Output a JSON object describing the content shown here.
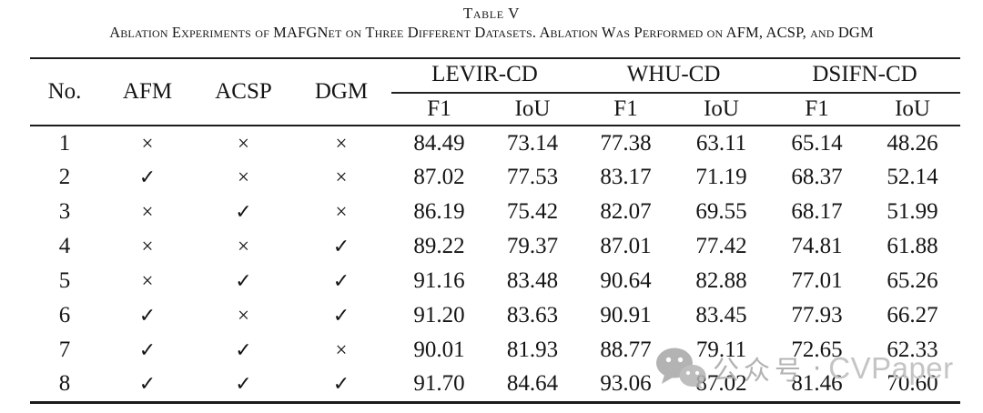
{
  "page": {
    "title": "Table V",
    "caption": "Ablation Experiments of MAFGNet on Three Different Datasets. Ablation Was Performed on AFM, ACSP, and DGM"
  },
  "table": {
    "left_headers": [
      "No.",
      "AFM",
      "ACSP",
      "DGM"
    ],
    "groups": [
      {
        "label": "LEVIR-CD",
        "metrics": [
          "F1",
          "IoU"
        ]
      },
      {
        "label": "WHU-CD",
        "metrics": [
          "F1",
          "IoU"
        ]
      },
      {
        "label": "DSIFN-CD",
        "metrics": [
          "F1",
          "IoU"
        ]
      }
    ],
    "rows": [
      {
        "no": "1",
        "marks": [
          "×",
          "×",
          "×"
        ],
        "values": [
          "84.49",
          "73.14",
          "77.38",
          "63.11",
          "65.14",
          "48.26"
        ]
      },
      {
        "no": "2",
        "marks": [
          "✓",
          "×",
          "×"
        ],
        "values": [
          "87.02",
          "77.53",
          "83.17",
          "71.19",
          "68.37",
          "52.14"
        ]
      },
      {
        "no": "3",
        "marks": [
          "×",
          "✓",
          "×"
        ],
        "values": [
          "86.19",
          "75.42",
          "82.07",
          "69.55",
          "68.17",
          "51.99"
        ]
      },
      {
        "no": "4",
        "marks": [
          "×",
          "×",
          "✓"
        ],
        "values": [
          "89.22",
          "79.37",
          "87.01",
          "77.42",
          "74.81",
          "61.88"
        ]
      },
      {
        "no": "5",
        "marks": [
          "×",
          "✓",
          "✓"
        ],
        "values": [
          "91.16",
          "83.48",
          "90.64",
          "82.88",
          "77.01",
          "65.26"
        ]
      },
      {
        "no": "6",
        "marks": [
          "✓",
          "×",
          "✓"
        ],
        "values": [
          "91.20",
          "83.63",
          "90.91",
          "83.45",
          "77.93",
          "66.27"
        ]
      },
      {
        "no": "7",
        "marks": [
          "✓",
          "✓",
          "×"
        ],
        "values": [
          "90.01",
          "81.93",
          "88.77",
          "79.11",
          "72.65",
          "62.33"
        ]
      },
      {
        "no": "8",
        "marks": [
          "✓",
          "✓",
          "✓"
        ],
        "values": [
          "91.70",
          "84.64",
          "93.06",
          "87.02",
          "81.46",
          "70.60"
        ]
      }
    ]
  },
  "watermark": {
    "cn_text": "公众号",
    "separator": "·",
    "latin_text": "CVPaper",
    "cn_color": "#b2b2b2",
    "latin_color": "#c4c4c4"
  },
  "colors": {
    "background": "#ffffff",
    "text": "#151515",
    "rule": "#1b1b1b"
  }
}
